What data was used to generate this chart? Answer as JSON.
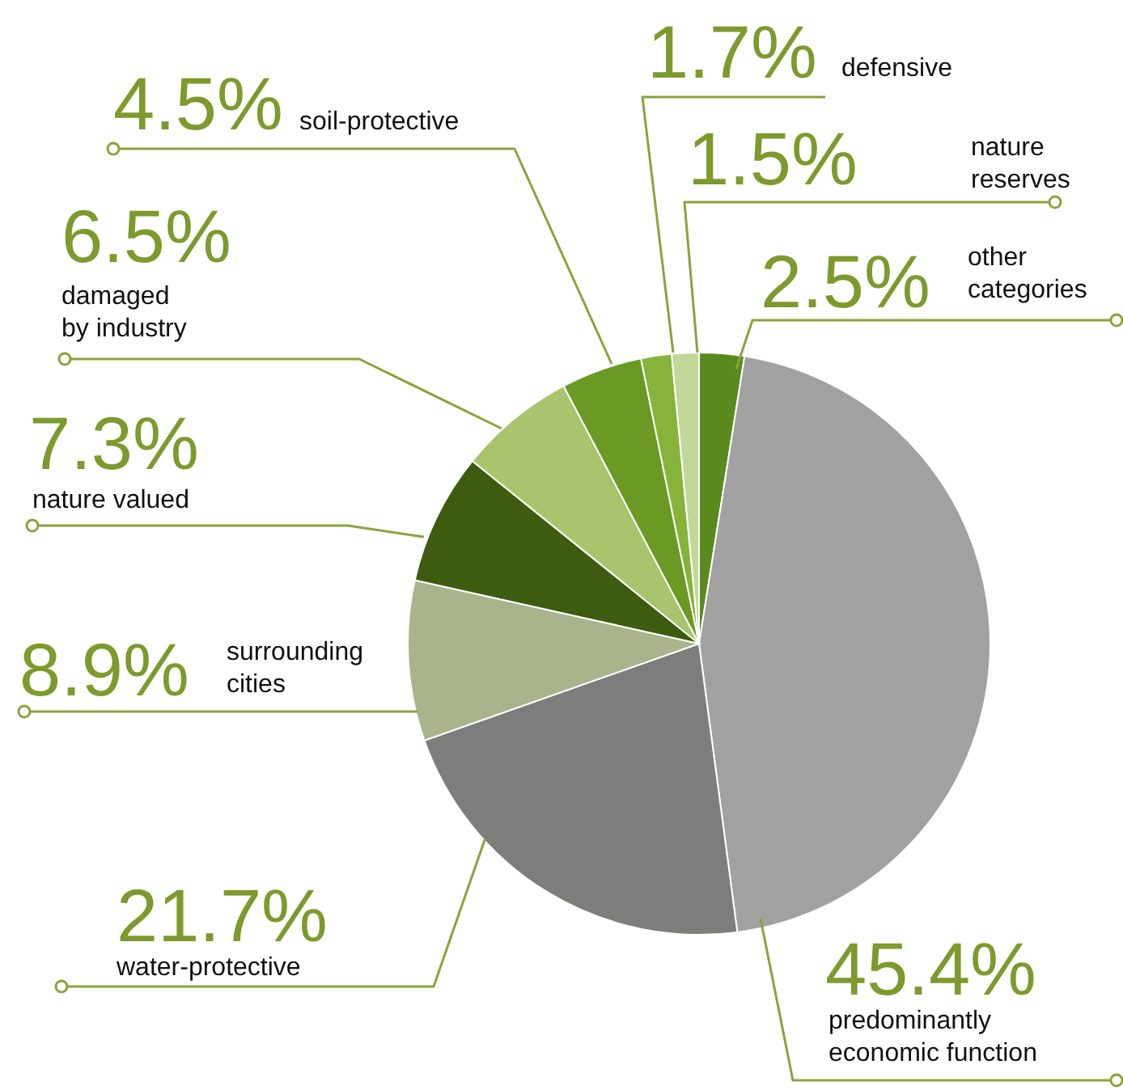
{
  "chart_data": {
    "type": "pie",
    "categories": [
      "other categories",
      "predominantly economic function",
      "water-protective",
      "surrounding cities",
      "nature valued",
      "damaged by industry",
      "soil-protective",
      "defensive",
      "nature reserves"
    ],
    "values": [
      2.5,
      45.4,
      21.7,
      8.9,
      7.3,
      6.5,
      4.5,
      1.7,
      1.5
    ],
    "value_labels": [
      "2.5%",
      "45.4%",
      "21.7%",
      "8.9%",
      "7.3%",
      "6.5%",
      "4.5%",
      "1.7%",
      "1.5%"
    ],
    "colors": [
      "#5a8a1e",
      "#a0a1a0",
      "#7d7d7b",
      "#a9b48c",
      "#3d5c10",
      "#a8c46c",
      "#6a9a24",
      "#86b43a",
      "#c2d89a"
    ],
    "legend": false
  }
}
